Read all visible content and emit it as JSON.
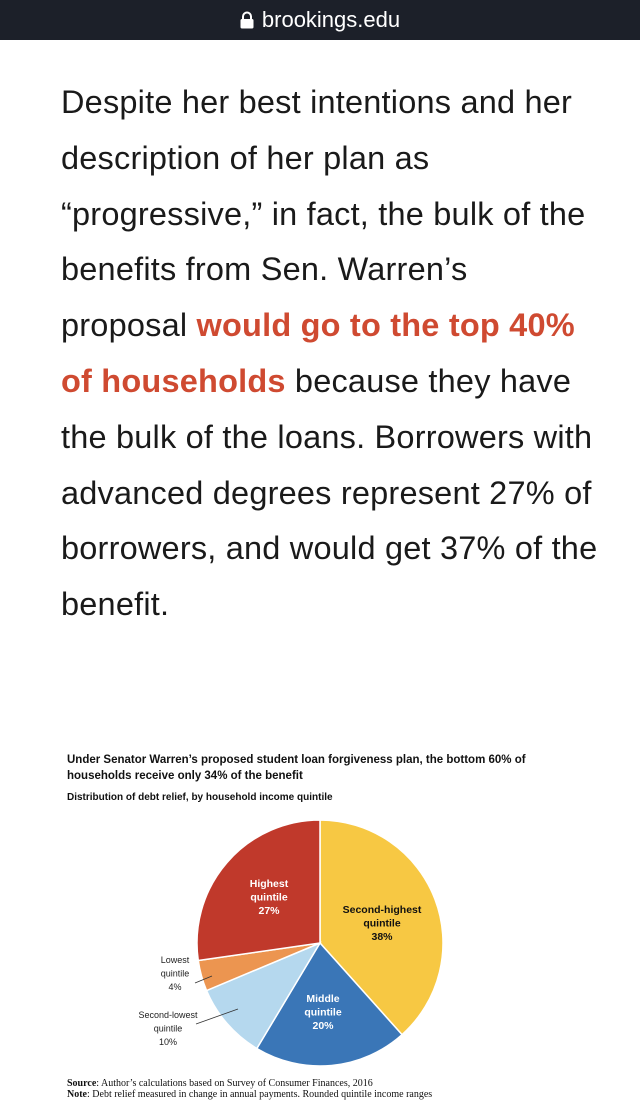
{
  "browser": {
    "domain": "brookings.edu"
  },
  "article": {
    "before": "Despite her best intentions and her description of her plan as “progressive,” in fact, the bulk of the benefits from Sen. Warren’s proposal ",
    "highlight": "would go to the top 40% of households",
    "after": " because they have the bulk of the loans. Borrowers with advanced degrees represent 27% of borrowers, and would get 37% of the benefit."
  },
  "chart_data": {
    "type": "pie",
    "title": "Under Senator Warren’s proposed student loan forgiveness plan, the bottom 60% of households receive only 34% of the benefit",
    "subtitle": "Distribution of debt relief, by household income quintile",
    "slices": [
      {
        "label": "Second-highest quintile",
        "value": 38,
        "color": "#f7c843"
      },
      {
        "label": "Middle quintile",
        "value": 20,
        "color": "#3a76b7"
      },
      {
        "label": "Second-lowest quintile",
        "value": 10,
        "color": "#b5d8ee"
      },
      {
        "label": "Lowest quintile",
        "value": 4,
        "color": "#ec9550"
      },
      {
        "label": "Highest quintile",
        "value": 27,
        "color": "#c0392b"
      }
    ]
  },
  "source": {
    "label": "Source",
    "text": ": Author’s calculations based on Survey of Consumer Finances, 2016",
    "note_label": "Note",
    "note_text": ": Debt relief measured in change in annual payments. Rounded quintile income ranges"
  }
}
